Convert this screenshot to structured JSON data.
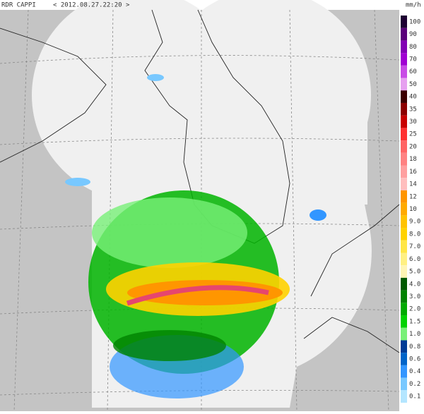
{
  "header": {
    "product": "RDR CAPPI",
    "timestamp": "< 2012.08.27.22:20 >",
    "unit": "mm/h"
  },
  "legend": {
    "levels": [
      {
        "label": "100",
        "color": "#1e0032"
      },
      {
        "label": "90",
        "color": "#5a007a"
      },
      {
        "label": "80",
        "color": "#8200b4"
      },
      {
        "label": "70",
        "color": "#a000d2"
      },
      {
        "label": "60",
        "color": "#c84be6"
      },
      {
        "label": "50",
        "color": "#e6a0f0"
      },
      {
        "label": "40",
        "color": "#3c0000"
      },
      {
        "label": "35",
        "color": "#8c0000"
      },
      {
        "label": "30",
        "color": "#c80000"
      },
      {
        "label": "25",
        "color": "#ff3232"
      },
      {
        "label": "20",
        "color": "#ff6464"
      },
      {
        "label": "18",
        "color": "#ff8282"
      },
      {
        "label": "16",
        "color": "#ffa0a0"
      },
      {
        "label": "14",
        "color": "#ffbebe"
      },
      {
        "label": "12",
        "color": "#ff9600"
      },
      {
        "label": "10",
        "color": "#ffaa00"
      },
      {
        "label": "9.0",
        "color": "#ffc300"
      },
      {
        "label": "8.0",
        "color": "#ffd200"
      },
      {
        "label": "7.0",
        "color": "#ffe646"
      },
      {
        "label": "6.0",
        "color": "#fff082"
      },
      {
        "label": "5.0",
        "color": "#fff5b4"
      },
      {
        "label": "4.0",
        "color": "#005a00"
      },
      {
        "label": "3.0",
        "color": "#008200"
      },
      {
        "label": "2.0",
        "color": "#00aa00"
      },
      {
        "label": "1.5",
        "color": "#00d200"
      },
      {
        "label": "1.0",
        "color": "#78f078"
      },
      {
        "label": "0.8",
        "color": "#003c96"
      },
      {
        "label": "0.6",
        "color": "#0064c8"
      },
      {
        "label": "0.4",
        "color": "#3296ff"
      },
      {
        "label": "0.2",
        "color": "#78c8ff"
      },
      {
        "label": "0.1",
        "color": "#b4e6ff"
      }
    ]
  }
}
